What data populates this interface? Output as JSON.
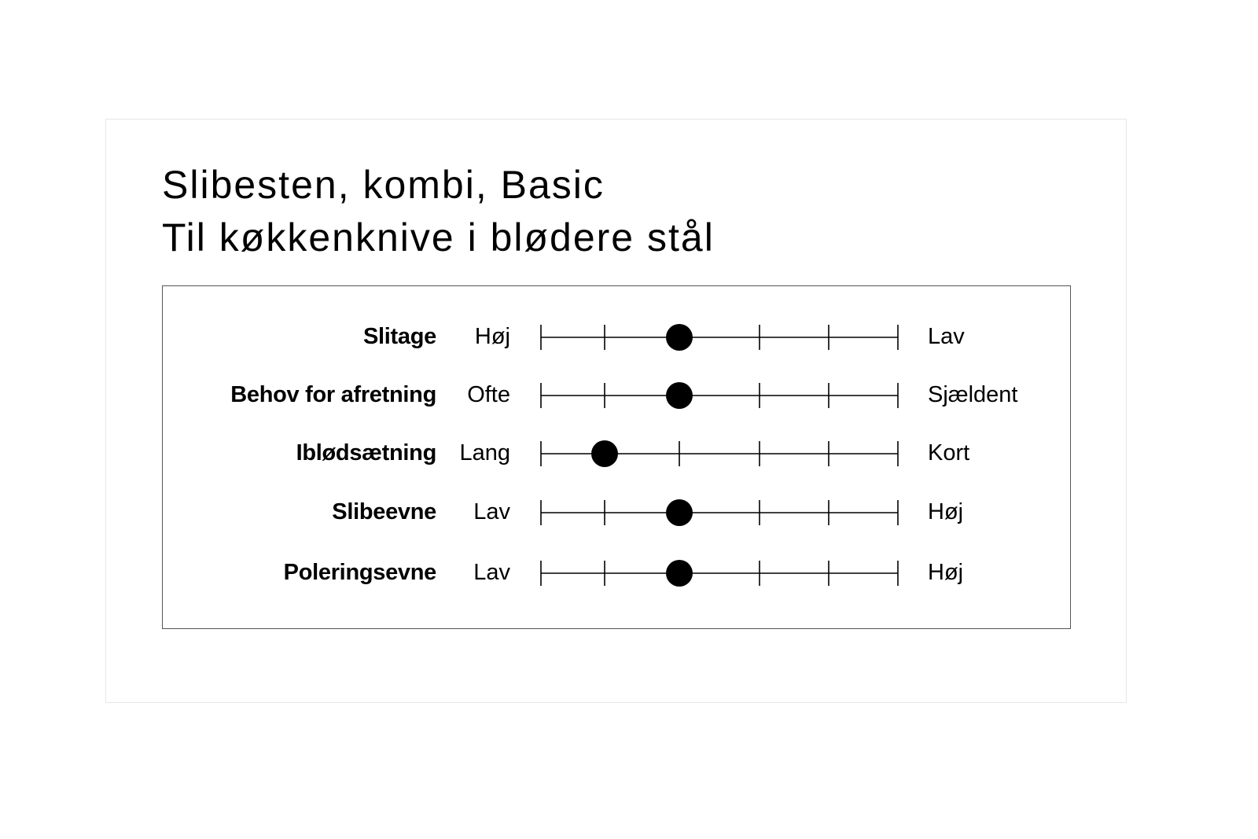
{
  "title": "Slibesten, kombi, Basic",
  "subtitle": "Til køkkenknive i blødere stål",
  "chart_data": {
    "type": "scatter",
    "title": "Slibesten, kombi, Basic",
    "subtitle": "Til køkkenknive i blødere stål",
    "scale_points": 6,
    "xlim": [
      0,
      5
    ],
    "rows": [
      {
        "label": "Slitage",
        "low": "Høj",
        "high": "Lav",
        "value": 2
      },
      {
        "label": "Behov for afretning",
        "low": "Ofte",
        "high": "Sjældent",
        "value": 2
      },
      {
        "label": "Iblødsætning",
        "low": "Lang",
        "high": "Kort",
        "value": 1
      },
      {
        "label": "Slibeevne",
        "low": "Lav",
        "high": "Høj",
        "value": 2
      },
      {
        "label": "Poleringsevne",
        "low": "Lav",
        "high": "Høj",
        "value": 2
      }
    ]
  }
}
